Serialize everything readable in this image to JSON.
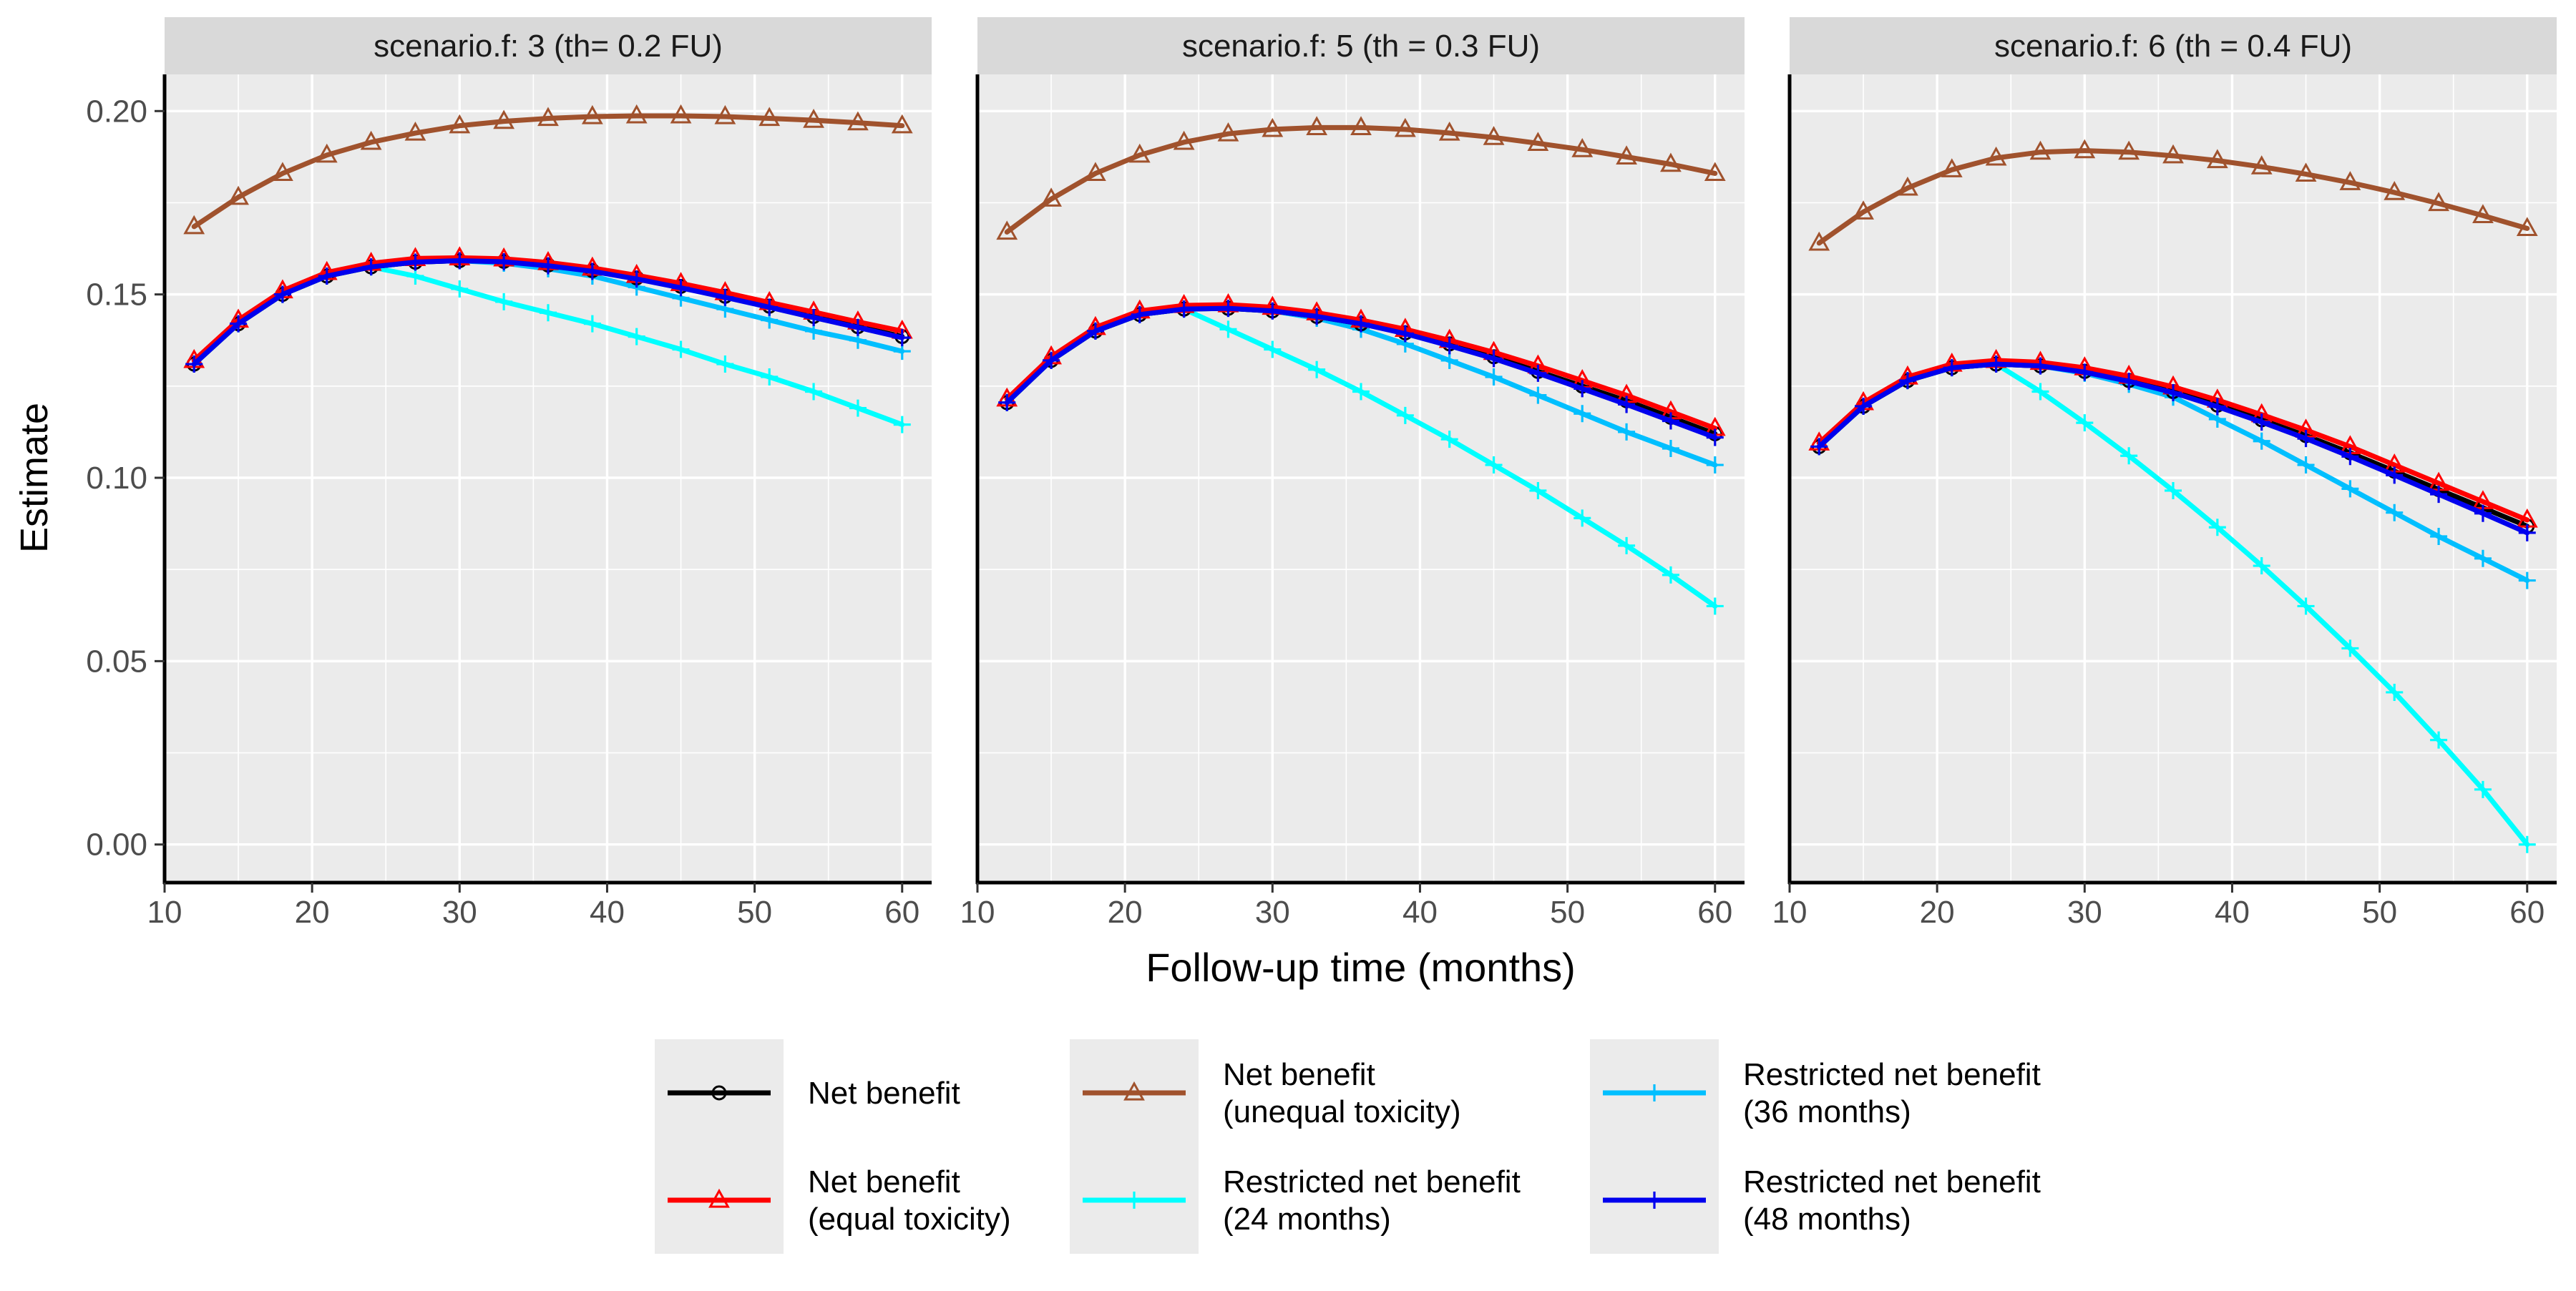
{
  "chart_data": {
    "type": "line",
    "ylabel": "Estimate",
    "xlabel": "Follow-up time (months)",
    "xlim": [
      10,
      62
    ],
    "ylim": [
      -0.01,
      0.21
    ],
    "xticks": [
      10,
      20,
      30,
      40,
      50,
      60
    ],
    "yticks": [
      0.0,
      0.05,
      0.1,
      0.15,
      0.2
    ],
    "ytick_labels": [
      "0.00",
      "0.05",
      "0.10",
      "0.15",
      "0.20"
    ],
    "x": [
      12,
      15,
      18,
      21,
      24,
      27,
      30,
      33,
      36,
      39,
      42,
      45,
      48,
      51,
      54,
      57,
      60
    ],
    "grid": true,
    "legend_position": "bottom",
    "legend": [
      {
        "key": "nb",
        "label_lines": [
          "Net benefit"
        ],
        "color": "#000000",
        "marker": "circle"
      },
      {
        "key": "nb_eq",
        "label_lines": [
          "Net benefit",
          " (equal toxicity)"
        ],
        "color": "#ff0000",
        "marker": "triangle"
      },
      {
        "key": "nb_uneq",
        "label_lines": [
          "Net benefit",
          " (unequal toxicity)"
        ],
        "color": "#a0522d",
        "marker": "triangle"
      },
      {
        "key": "rnb24",
        "label_lines": [
          "Restricted net benefit",
          " (24 months)"
        ],
        "color": "#00ffff",
        "marker": "plus"
      },
      {
        "key": "rnb36",
        "label_lines": [
          "Restricted net benefit",
          " (36 months)"
        ],
        "color": "#00bfff",
        "marker": "plus"
      },
      {
        "key": "rnb48",
        "label_lines": [
          "Restricted net benefit",
          " (48 months)"
        ],
        "color": "#0000ee",
        "marker": "plus"
      }
    ],
    "panels": [
      {
        "title": "scenario.f: 3 (th= 0.2 FU)",
        "series": [
          {
            "key": "nb_uneq",
            "values": [
              0.1685,
              0.1765,
              0.183,
              0.188,
              0.1915,
              0.194,
              0.196,
              0.1972,
              0.198,
              0.1985,
              0.1987,
              0.1987,
              0.1985,
              0.198,
              0.1975,
              0.1968,
              0.196
            ]
          },
          {
            "key": "rnb24",
            "values": [
              0.131,
              0.142,
              0.15,
              0.155,
              0.1575,
              0.155,
              0.1515,
              0.148,
              0.145,
              0.142,
              0.1385,
              0.135,
              0.131,
              0.1275,
              0.1235,
              0.119,
              0.1145
            ]
          },
          {
            "key": "rnb36",
            "values": [
              0.131,
              0.142,
              0.15,
              0.155,
              0.1575,
              0.1588,
              0.1592,
              0.1585,
              0.157,
              0.155,
              0.152,
              0.149,
              0.146,
              0.143,
              0.14,
              0.1375,
              0.1345
            ]
          },
          {
            "key": "nb",
            "values": [
              0.131,
              0.142,
              0.15,
              0.155,
              0.1575,
              0.1588,
              0.1592,
              0.159,
              0.158,
              0.1565,
              0.1545,
              0.1522,
              0.1495,
              0.1468,
              0.144,
              0.1412,
              0.1385
            ]
          },
          {
            "key": "nb_eq",
            "values": [
              0.132,
              0.143,
              0.151,
              0.156,
              0.1585,
              0.1598,
              0.16,
              0.1597,
              0.1587,
              0.1572,
              0.1552,
              0.153,
              0.1505,
              0.1478,
              0.1452,
              0.1425,
              0.14
            ]
          },
          {
            "key": "rnb48",
            "values": [
              0.131,
              0.142,
              0.15,
              0.155,
              0.1575,
              0.1588,
              0.1592,
              0.1589,
              0.1578,
              0.1563,
              0.1542,
              0.1518,
              0.1492,
              0.1465,
              0.1437,
              0.141,
              0.1382
            ]
          }
        ]
      },
      {
        "title": "scenario.f: 5 (th = 0.3 FU)",
        "series": [
          {
            "key": "nb_uneq",
            "values": [
              0.167,
              0.176,
              0.183,
              0.188,
              0.1915,
              0.1938,
              0.195,
              0.1955,
              0.1955,
              0.195,
              0.194,
              0.1928,
              0.1912,
              0.1895,
              0.1875,
              0.1855,
              0.183
            ]
          },
          {
            "key": "rnb24",
            "values": [
              0.1205,
              0.132,
              0.14,
              0.1445,
              0.146,
              0.1405,
              0.135,
              0.1295,
              0.1235,
              0.117,
              0.1105,
              0.1035,
              0.0965,
              0.089,
              0.0815,
              0.0735,
              0.065
            ]
          },
          {
            "key": "rnb36",
            "values": [
              0.1205,
              0.132,
              0.14,
              0.1445,
              0.146,
              0.1462,
              0.1455,
              0.1435,
              0.1405,
              0.1365,
              0.132,
              0.1275,
              0.1225,
              0.1175,
              0.1125,
              0.108,
              0.1035
            ]
          },
          {
            "key": "nb",
            "values": [
              0.1205,
              0.132,
              0.14,
              0.1445,
              0.146,
              0.1462,
              0.1455,
              0.144,
              0.142,
              0.1395,
              0.1365,
              0.133,
              0.129,
              0.125,
              0.121,
              0.1165,
              0.112
            ]
          },
          {
            "key": "nb_eq",
            "values": [
              0.1215,
              0.133,
              0.141,
              0.1455,
              0.147,
              0.1472,
              0.1465,
              0.145,
              0.143,
              0.1405,
              0.1375,
              0.1342,
              0.1305,
              0.1265,
              0.1225,
              0.118,
              0.1135
            ]
          },
          {
            "key": "rnb48",
            "values": [
              0.1205,
              0.132,
              0.14,
              0.1445,
              0.146,
              0.1462,
              0.1455,
              0.144,
              0.142,
              0.1393,
              0.136,
              0.1325,
              0.1285,
              0.1243,
              0.12,
              0.1155,
              0.111
            ]
          }
        ]
      },
      {
        "title": "scenario.f: 6 (th = 0.4 FU)",
        "series": [
          {
            "key": "nb_uneq",
            "values": [
              0.164,
              0.1725,
              0.179,
              0.184,
              0.1872,
              0.1888,
              0.1892,
              0.1888,
              0.1878,
              0.1865,
              0.1848,
              0.1828,
              0.1805,
              0.1778,
              0.1748,
              0.1715,
              0.168
            ]
          },
          {
            "key": "rnb24",
            "values": [
              0.1085,
              0.1195,
              0.1265,
              0.13,
              0.131,
              0.1235,
              0.115,
              0.106,
              0.0965,
              0.0865,
              0.076,
              0.065,
              0.0535,
              0.0415,
              0.0285,
              0.015,
              0.0
            ]
          },
          {
            "key": "rnb36",
            "values": [
              0.1085,
              0.1195,
              0.1265,
              0.13,
              0.131,
              0.1305,
              0.1285,
              0.1255,
              0.122,
              0.116,
              0.11,
              0.1035,
              0.097,
              0.0905,
              0.084,
              0.078,
              0.072
            ]
          },
          {
            "key": "nb",
            "values": [
              0.1085,
              0.1195,
              0.1265,
              0.13,
              0.131,
              0.1305,
              0.129,
              0.1265,
              0.1235,
              0.1198,
              0.1158,
              0.1115,
              0.1068,
              0.1018,
              0.0968,
              0.0918,
              0.0868
            ]
          },
          {
            "key": "nb_eq",
            "values": [
              0.1095,
              0.1205,
              0.1275,
              0.131,
              0.132,
              0.1315,
              0.13,
              0.1277,
              0.1248,
              0.1212,
              0.1172,
              0.113,
              0.1085,
              0.1035,
              0.0985,
              0.0935,
              0.0885
            ]
          },
          {
            "key": "rnb48",
            "values": [
              0.1085,
              0.1195,
              0.1265,
              0.13,
              0.131,
              0.1305,
              0.1288,
              0.1263,
              0.1232,
              0.1194,
              0.1152,
              0.1107,
              0.1058,
              0.1007,
              0.0955,
              0.0903,
              0.085
            ]
          }
        ]
      }
    ]
  }
}
